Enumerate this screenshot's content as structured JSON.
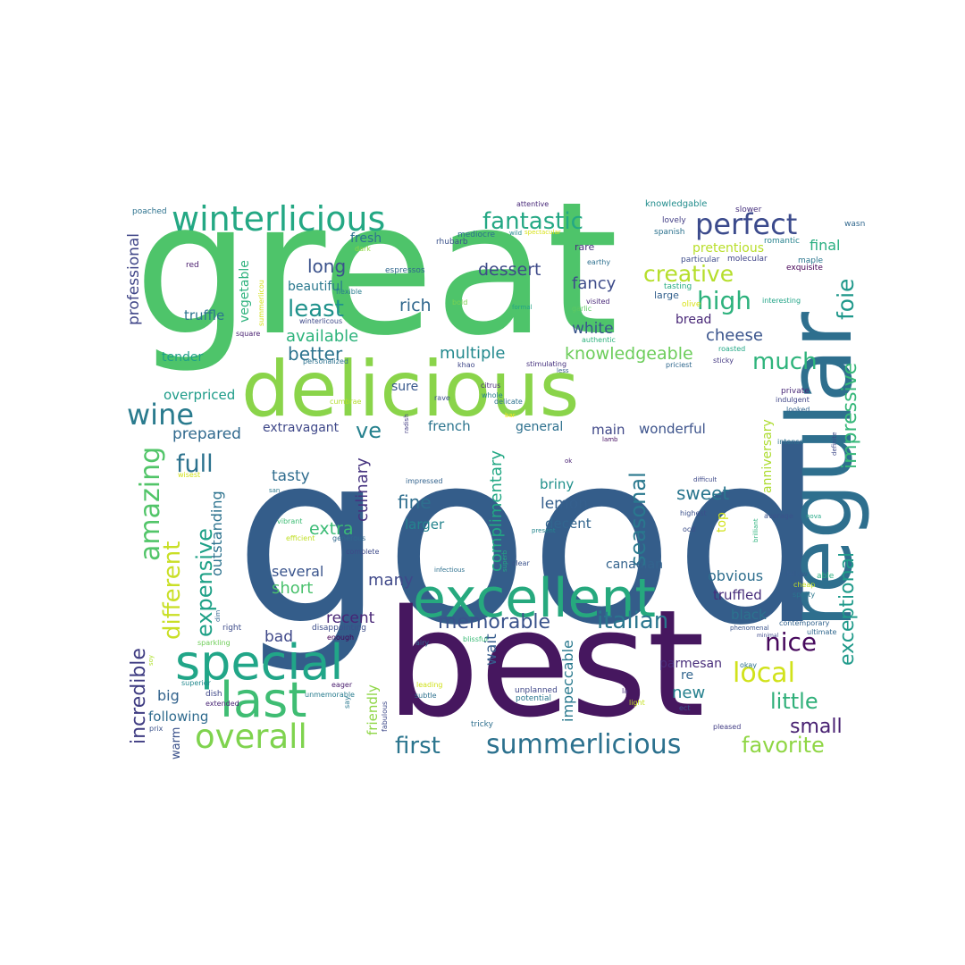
{
  "words": [
    {
      "text": "good",
      "color": "#345d8a"
    },
    {
      "text": "great",
      "color": "#4ec46a"
    },
    {
      "text": "best",
      "color": "#46175f"
    },
    {
      "text": "delicious",
      "color": "#8ad44a"
    },
    {
      "text": "regular",
      "color": "#2e6f8e"
    },
    {
      "text": "excellent",
      "color": "#26a97e"
    },
    {
      "text": "special",
      "color": "#21a688"
    },
    {
      "text": "last",
      "color": "#3fbd73"
    },
    {
      "text": "winterlicious",
      "color": "#24a884"
    },
    {
      "text": "perfect",
      "color": "#3b4a8c"
    },
    {
      "text": "fantastic",
      "color": "#24a884"
    },
    {
      "text": "wine",
      "color": "#2a7b8e"
    },
    {
      "text": "overall",
      "color": "#7fd34e"
    },
    {
      "text": "summerlicious",
      "color": "#2c718e"
    },
    {
      "text": "amazing",
      "color": "#52c569"
    },
    {
      "text": "different",
      "color": "#c9df26"
    },
    {
      "text": "expensive",
      "color": "#1fa187"
    },
    {
      "text": "incredible",
      "color": "#3f3c82"
    },
    {
      "text": "memorable",
      "color": "#3a538b"
    },
    {
      "text": "italian",
      "color": "#2a768e"
    },
    {
      "text": "nice",
      "color": "#46085c"
    },
    {
      "text": "local",
      "color": "#d1e21b"
    },
    {
      "text": "little",
      "color": "#30b07a"
    },
    {
      "text": "small",
      "color": "#482172"
    },
    {
      "text": "favorite",
      "color": "#8fd644"
    },
    {
      "text": "first",
      "color": "#2b758e"
    },
    {
      "text": "high",
      "color": "#2db27d"
    },
    {
      "text": "creative",
      "color": "#b5de2b"
    },
    {
      "text": "foie",
      "color": "#1f988b"
    },
    {
      "text": "impressive",
      "color": "#35b779"
    },
    {
      "text": "exceptional",
      "color": "#1f9a8a"
    },
    {
      "text": "much",
      "color": "#2fb47c"
    },
    {
      "text": "least",
      "color": "#20928c"
    },
    {
      "text": "long",
      "color": "#3b528b"
    },
    {
      "text": "full",
      "color": "#2c728e"
    },
    {
      "text": "ve",
      "color": "#26818e"
    },
    {
      "text": "seasonal",
      "color": "#2a788e"
    },
    {
      "text": "sweet",
      "color": "#2a768e"
    },
    {
      "text": "fine",
      "color": "#2e6e8e"
    },
    {
      "text": "lemon",
      "color": "#355f8d"
    },
    {
      "text": "knowledgeable",
      "color": "#6ccd5a"
    },
    {
      "text": "complimentary",
      "color": "#22a884"
    },
    {
      "text": "dessert",
      "color": "#3e4a89"
    },
    {
      "text": "fancy",
      "color": "#3e4c8a"
    },
    {
      "text": "rich",
      "color": "#31688e"
    },
    {
      "text": "available",
      "color": "#2eb37c"
    },
    {
      "text": "better",
      "color": "#2c738e"
    },
    {
      "text": "multiple",
      "color": "#23898e"
    },
    {
      "text": "white",
      "color": "#39558c"
    },
    {
      "text": "cheese",
      "color": "#3a548c"
    },
    {
      "text": "bread",
      "color": "#482777"
    },
    {
      "text": "beautiful",
      "color": "#2a788e"
    },
    {
      "text": "vegetable",
      "color": "#2db27d"
    },
    {
      "text": "truffle",
      "color": "#2b748e"
    },
    {
      "text": "fresh",
      "color": "#2c728e"
    },
    {
      "text": "professional",
      "color": "#404688"
    },
    {
      "text": "prepared",
      "color": "#30698e"
    },
    {
      "text": "extravagant",
      "color": "#3f4889"
    },
    {
      "text": "french",
      "color": "#2b748e"
    },
    {
      "text": "general",
      "color": "#2d708e"
    },
    {
      "text": "main",
      "color": "#3f4788"
    },
    {
      "text": "wonderful",
      "color": "#3b528b"
    },
    {
      "text": "culinary",
      "color": "#46337f"
    },
    {
      "text": "briny",
      "color": "#21918c"
    },
    {
      "text": "outstanding",
      "color": "#2c728e"
    },
    {
      "text": "tasty",
      "color": "#2f6c8e"
    },
    {
      "text": "extra",
      "color": "#3bbb75"
    },
    {
      "text": "larger",
      "color": "#25848e"
    },
    {
      "text": "decent",
      "color": "#32658e"
    },
    {
      "text": "canadian",
      "color": "#33638d"
    },
    {
      "text": "wait",
      "color": "#365c8d"
    },
    {
      "text": "impeccable",
      "color": "#29798e"
    },
    {
      "text": "obvious",
      "color": "#2e6e8e"
    },
    {
      "text": "truffled",
      "color": "#472d7b"
    },
    {
      "text": "black",
      "color": "#2c728e"
    },
    {
      "text": "anniversary",
      "color": "#addc30"
    },
    {
      "text": "top",
      "color": "#d2e21b"
    },
    {
      "text": "several",
      "color": "#3a548c"
    },
    {
      "text": "short",
      "color": "#4ac16d"
    },
    {
      "text": "many",
      "color": "#3f4889"
    },
    {
      "text": "recent",
      "color": "#482576"
    },
    {
      "text": "bad",
      "color": "#3f4889"
    },
    {
      "text": "big",
      "color": "#33638d"
    },
    {
      "text": "following",
      "color": "#2f6b8e"
    },
    {
      "text": "friendly",
      "color": "#8ed645"
    },
    {
      "text": "warm",
      "color": "#3b528b"
    },
    {
      "text": "parmesan",
      "color": "#472c7a"
    },
    {
      "text": "re",
      "color": "#32658e"
    },
    {
      "text": "new",
      "color": "#26818e"
    },
    {
      "text": "overpriced",
      "color": "#1e9c89"
    },
    {
      "text": "tender",
      "color": "#1fa088"
    },
    {
      "text": "sure",
      "color": "#38588c"
    },
    {
      "text": "final",
      "color": "#28ae80"
    },
    {
      "text": "pretentious",
      "color": "#b8de29"
    },
    {
      "text": "large",
      "color": "#34618d"
    },
    {
      "text": "rare",
      "color": "#472f7d"
    },
    {
      "text": "attentive",
      "color": "#482979"
    },
    {
      "text": "knowledgable",
      "color": "#228d8d"
    },
    {
      "text": "slower",
      "color": "#46307e"
    },
    {
      "text": "lovely",
      "color": "#433e85"
    },
    {
      "text": "spanish",
      "color": "#2c728e"
    },
    {
      "text": "wasn",
      "color": "#31688e"
    },
    {
      "text": "romantic",
      "color": "#26828e"
    },
    {
      "text": "particular",
      "color": "#3e4c8a"
    },
    {
      "text": "molecular",
      "color": "#404588"
    },
    {
      "text": "maple",
      "color": "#2a768e"
    },
    {
      "text": "exquisite",
      "color": "#440154"
    },
    {
      "text": "earthy",
      "color": "#2d708e"
    },
    {
      "text": "tasting",
      "color": "#25ab82"
    },
    {
      "text": "olive",
      "color": "#d8e219"
    },
    {
      "text": "authentic",
      "color": "#2db27d"
    },
    {
      "text": "interesting",
      "color": "#20a386"
    },
    {
      "text": "roasted",
      "color": "#22a785"
    },
    {
      "text": "sticky",
      "color": "#443983"
    },
    {
      "text": "priciest",
      "color": "#31688e"
    },
    {
      "text": "visited",
      "color": "#482878"
    },
    {
      "text": "garlic",
      "color": "#5ec962"
    },
    {
      "text": "formal",
      "color": "#20a386"
    },
    {
      "text": "mediocre",
      "color": "#2d708e"
    },
    {
      "text": "wild",
      "color": "#23898e"
    },
    {
      "text": "spectacular",
      "color": "#d8e219"
    },
    {
      "text": "rhubarb",
      "color": "#3b528b"
    },
    {
      "text": "espressos",
      "color": "#31688e"
    },
    {
      "text": "dark",
      "color": "#8fd744"
    },
    {
      "text": "poached",
      "color": "#2c728e"
    },
    {
      "text": "red",
      "color": "#481a6c"
    },
    {
      "text": "summerlicou",
      "color": "#d5e21a"
    },
    {
      "text": "flexible",
      "color": "#287c8e"
    },
    {
      "text": "winterlicous",
      "color": "#3e4989"
    },
    {
      "text": "bold",
      "color": "#7ad151"
    },
    {
      "text": "square",
      "color": "#481f70"
    },
    {
      "text": "personalized",
      "color": "#2c718e"
    },
    {
      "text": "khao",
      "color": "#3f4788"
    },
    {
      "text": "stimulating",
      "color": "#46327e"
    },
    {
      "text": "less",
      "color": "#355f8d"
    },
    {
      "text": "citrus",
      "color": "#482979"
    },
    {
      "text": "whole",
      "color": "#277f8e"
    },
    {
      "text": "delicate",
      "color": "#2c718e"
    },
    {
      "text": "rave",
      "color": "#3b518b"
    },
    {
      "text": "cumbrae",
      "color": "#b2dd2d"
    },
    {
      "text": "radish",
      "color": "#433d84"
    },
    {
      "text": "bar",
      "color": "#fde725"
    },
    {
      "text": "lamb",
      "color": "#471063"
    },
    {
      "text": "ok",
      "color": "#482173"
    },
    {
      "text": "impressed",
      "color": "#33638d"
    },
    {
      "text": "wisest",
      "color": "#d2e21b"
    },
    {
      "text": "san",
      "color": "#2a788e"
    },
    {
      "text": "vibrant",
      "color": "#3dbc74"
    },
    {
      "text": "efficient",
      "color": "#c0df25"
    },
    {
      "text": "generous",
      "color": "#31688e"
    },
    {
      "text": "complete",
      "color": "#3e4a89"
    },
    {
      "text": "infectious",
      "color": "#2d708e"
    },
    {
      "text": "superb",
      "color": "#23a983"
    },
    {
      "text": "clear",
      "color": "#3b528b"
    },
    {
      "text": "present",
      "color": "#24868e"
    },
    {
      "text": "difficult",
      "color": "#3e4989"
    },
    {
      "text": "highest",
      "color": "#3b518b"
    },
    {
      "text": "ocd",
      "color": "#3d4e8a"
    },
    {
      "text": "brilliant",
      "color": "#2db27d"
    },
    {
      "text": "average",
      "color": "#3b528b"
    },
    {
      "text": "nova",
      "color": "#22a785"
    },
    {
      "text": "definite",
      "color": "#3e4989"
    },
    {
      "text": "intense",
      "color": "#2c728e"
    },
    {
      "text": "looked",
      "color": "#32648e"
    },
    {
      "text": "indulgent",
      "color": "#404688"
    },
    {
      "text": "private",
      "color": "#482777"
    },
    {
      "text": "fellow",
      "color": "#365d8d"
    },
    {
      "text": "able",
      "color": "#29af7f"
    },
    {
      "text": "cheap",
      "color": "#c2df23"
    },
    {
      "text": "spotty",
      "color": "#2a768e"
    },
    {
      "text": "contemporary",
      "color": "#33638d"
    },
    {
      "text": "phenomenal",
      "color": "#3a548c"
    },
    {
      "text": "ultimate",
      "color": "#31688e"
    },
    {
      "text": "minimal",
      "color": "#3e4989"
    },
    {
      "text": "okay",
      "color": "#2d718e"
    },
    {
      "text": "pleased",
      "color": "#433e85"
    },
    {
      "text": "ect",
      "color": "#3b528b"
    },
    {
      "text": "light",
      "color": "#c5e021"
    },
    {
      "text": "la",
      "color": "#472c7a"
    },
    {
      "text": "unplanned",
      "color": "#3f4788"
    },
    {
      "text": "potential",
      "color": "#2a778e"
    },
    {
      "text": "tricky",
      "color": "#2e6f8e"
    },
    {
      "text": "subtle",
      "color": "#2d708e"
    },
    {
      "text": "leading",
      "color": "#d0e11c"
    },
    {
      "text": "airy",
      "color": "#32648e"
    },
    {
      "text": "blissful",
      "color": "#3aba76"
    },
    {
      "text": "enough",
      "color": "#440154"
    },
    {
      "text": "disappointing",
      "color": "#3d4e8a"
    },
    {
      "text": "sparkling",
      "color": "#6ece58"
    },
    {
      "text": "right",
      "color": "#3e4c8a"
    },
    {
      "text": "dim",
      "color": "#32648e"
    },
    {
      "text": "eager",
      "color": "#481b6d"
    },
    {
      "text": "unmemorable",
      "color": "#287c8e"
    },
    {
      "text": "say",
      "color": "#2a788e"
    },
    {
      "text": "fabulous",
      "color": "#3e4a89"
    },
    {
      "text": "superior",
      "color": "#23898e"
    },
    {
      "text": "dish",
      "color": "#3f4788"
    },
    {
      "text": "extended",
      "color": "#482475"
    },
    {
      "text": "prix",
      "color": "#3b528b"
    },
    {
      "text": "soy",
      "color": "#ade028"
    }
  ]
}
